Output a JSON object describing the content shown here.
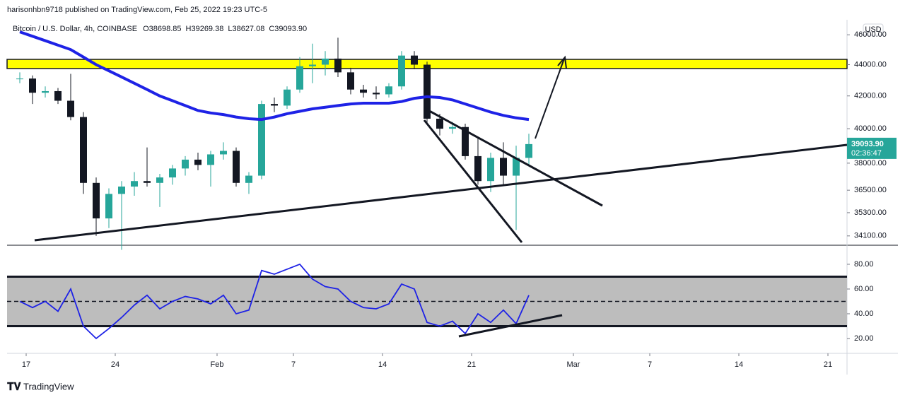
{
  "header": {
    "publisher": "harisonhbn9718 published on TradingView.com, Feb 25, 2022 19:23 UTC-5",
    "currency": "USD",
    "brand": "TradingView"
  },
  "chart_data": [
    {
      "type": "candlestick",
      "title": "Bitcoin / U.S. Dollar, 4h, COINBASE",
      "ohlc_labels": [
        "O38698.85",
        "H39269.38",
        "L38627.08",
        "C39093.90"
      ],
      "log": true,
      "up_color": "#26a69a",
      "down_color": "#131722",
      "ma_color": "#1e22e6",
      "x": [
        "2022-01-16",
        "2022-01-17",
        "2022-01-18",
        "2022-01-19",
        "2022-01-20",
        "2022-01-21",
        "2022-01-22",
        "2022-01-23",
        "2022-01-24",
        "2022-01-25",
        "2022-01-26",
        "2022-01-27",
        "2022-01-28",
        "2022-01-29",
        "2022-01-30",
        "2022-01-31",
        "2022-02-01",
        "2022-02-02",
        "2022-02-03",
        "2022-02-04",
        "2022-02-05",
        "2022-02-06",
        "2022-02-07",
        "2022-02-08",
        "2022-02-09",
        "2022-02-10",
        "2022-02-11",
        "2022-02-12",
        "2022-02-13",
        "2022-02-14",
        "2022-02-15",
        "2022-02-16",
        "2022-02-17",
        "2022-02-18",
        "2022-02-19",
        "2022-02-20",
        "2022-02-21",
        "2022-02-22",
        "2022-02-23",
        "2022-02-24",
        "2022-02-25"
      ],
      "open": [
        43100,
        43100,
        42200,
        42300,
        41700,
        40700,
        36900,
        35000,
        36300,
        36700,
        37000,
        36900,
        37200,
        37700,
        38200,
        37900,
        38500,
        38700,
        36900,
        37300,
        41500,
        41400,
        42400,
        43900,
        44000,
        44400,
        43500,
        42400,
        42200,
        42100,
        42600,
        44600,
        44000,
        40600,
        40000,
        40100,
        38400,
        37000,
        38300,
        37300,
        38300
      ],
      "high": [
        43500,
        43300,
        42600,
        42500,
        43400,
        41000,
        37200,
        36600,
        37000,
        37500,
        38900,
        37400,
        37900,
        38400,
        38600,
        38700,
        39200,
        38900,
        37500,
        41700,
        41900,
        42600,
        44500,
        45400,
        44900,
        45800,
        43800,
        42700,
        42600,
        42800,
        44900,
        44900,
        44200,
        40900,
        40400,
        40300,
        39500,
        38600,
        39200,
        39000,
        39700
      ],
      "low": [
        42800,
        41500,
        41900,
        41500,
        40500,
        36300,
        34100,
        34500,
        33400,
        36200,
        36700,
        35600,
        36800,
        37300,
        37600,
        36700,
        38200,
        36700,
        36300,
        37100,
        41000,
        41200,
        42200,
        42800,
        43300,
        43200,
        42100,
        41900,
        41800,
        41900,
        42400,
        43700,
        40300,
        39600,
        39700,
        38200,
        36800,
        36400,
        36800,
        34400,
        37900
      ],
      "close": [
        43100,
        42200,
        42300,
        41700,
        40700,
        36900,
        35000,
        36300,
        36700,
        37000,
        36900,
        37200,
        37700,
        38200,
        37900,
        38500,
        38700,
        36900,
        37300,
        41500,
        41400,
        42400,
        43900,
        44000,
        44400,
        43500,
        42400,
        42200,
        42100,
        42600,
        44600,
        44000,
        40600,
        40000,
        40100,
        38400,
        37000,
        38300,
        37300,
        38300,
        39093.9
      ],
      "ma_values": [
        46200,
        45900,
        45600,
        45300,
        45000,
        44500,
        44000,
        43600,
        43200,
        42800,
        42400,
        42000,
        41700,
        41400,
        41100,
        40950,
        40850,
        40700,
        40600,
        40550,
        40700,
        40900,
        41050,
        41200,
        41300,
        41400,
        41500,
        41550,
        41550,
        41550,
        41650,
        41850,
        41950,
        41900,
        41750,
        41500,
        41250,
        41000,
        40800,
        40650,
        40550
      ],
      "last_price": {
        "value": 39093.9,
        "label": "39093.90"
      },
      "countdown": "02:36:47",
      "xlim": [
        "2022-01-15T12:00:00",
        "2022-03-22T12:00:00"
      ],
      "xticks": [
        {
          "value": "2022-01-17",
          "label": "17"
        },
        {
          "value": "2022-01-24",
          "label": "24"
        },
        {
          "value": "2022-02-01",
          "label": "Feb"
        },
        {
          "value": "2022-02-07",
          "label": "7"
        },
        {
          "value": "2022-02-14",
          "label": "14"
        },
        {
          "value": "2022-02-21",
          "label": "21"
        },
        {
          "value": "2022-03-01",
          "label": "Mar"
        },
        {
          "value": "2022-03-07",
          "label": "7"
        },
        {
          "value": "2022-03-14",
          "label": "14"
        },
        {
          "value": "2022-03-21",
          "label": "21"
        }
      ],
      "ylim": [
        33630,
        47040
      ],
      "yticks": [
        {
          "value": 34100,
          "label": "34100.00"
        },
        {
          "value": 35300,
          "label": "35300.00"
        },
        {
          "value": 36500,
          "label": "36500.00"
        },
        {
          "value": 38000,
          "label": "38000.00"
        },
        {
          "value": 40000,
          "label": "40000.00"
        },
        {
          "value": 42000,
          "label": "42000.00"
        },
        {
          "value": 44000,
          "label": "44000.00"
        },
        {
          "value": 46000,
          "label": "46000.00"
        }
      ]
    },
    {
      "type": "line",
      "color": "#1e22e6",
      "band": [
        30,
        70
      ],
      "band_color": "#bdbdbd",
      "midline": 50,
      "x": [
        "2022-01-16",
        "2022-01-17",
        "2022-01-18",
        "2022-01-19",
        "2022-01-20",
        "2022-01-21",
        "2022-01-22",
        "2022-01-23",
        "2022-01-24",
        "2022-01-25",
        "2022-01-26",
        "2022-01-27",
        "2022-01-28",
        "2022-01-29",
        "2022-01-30",
        "2022-01-31",
        "2022-02-01",
        "2022-02-02",
        "2022-02-03",
        "2022-02-04",
        "2022-02-05",
        "2022-02-06",
        "2022-02-07",
        "2022-02-08",
        "2022-02-09",
        "2022-02-10",
        "2022-02-11",
        "2022-02-12",
        "2022-02-13",
        "2022-02-14",
        "2022-02-15",
        "2022-02-16",
        "2022-02-17",
        "2022-02-18",
        "2022-02-19",
        "2022-02-20",
        "2022-02-21",
        "2022-02-22",
        "2022-02-23",
        "2022-02-24",
        "2022-02-25"
      ],
      "values": [
        50,
        45,
        50,
        42,
        60,
        30,
        20,
        28,
        37,
        47,
        55,
        44,
        50,
        54,
        52,
        48,
        55,
        40,
        43,
        75,
        72,
        76,
        80,
        68,
        62,
        60,
        50,
        45,
        44,
        48,
        64,
        60,
        33,
        30,
        34,
        24,
        40,
        33,
        43,
        32,
        55
      ],
      "xlim": [
        "2022-01-15T12:00:00",
        "2022-03-22T12:00:00"
      ],
      "ylim": [
        8,
        95.4
      ],
      "yticks": [
        {
          "value": 20,
          "label": "20.00"
        },
        {
          "value": 40,
          "label": "40.00"
        },
        {
          "value": 60,
          "label": "60.00"
        },
        {
          "value": 80,
          "label": "80.00"
        }
      ]
    }
  ]
}
